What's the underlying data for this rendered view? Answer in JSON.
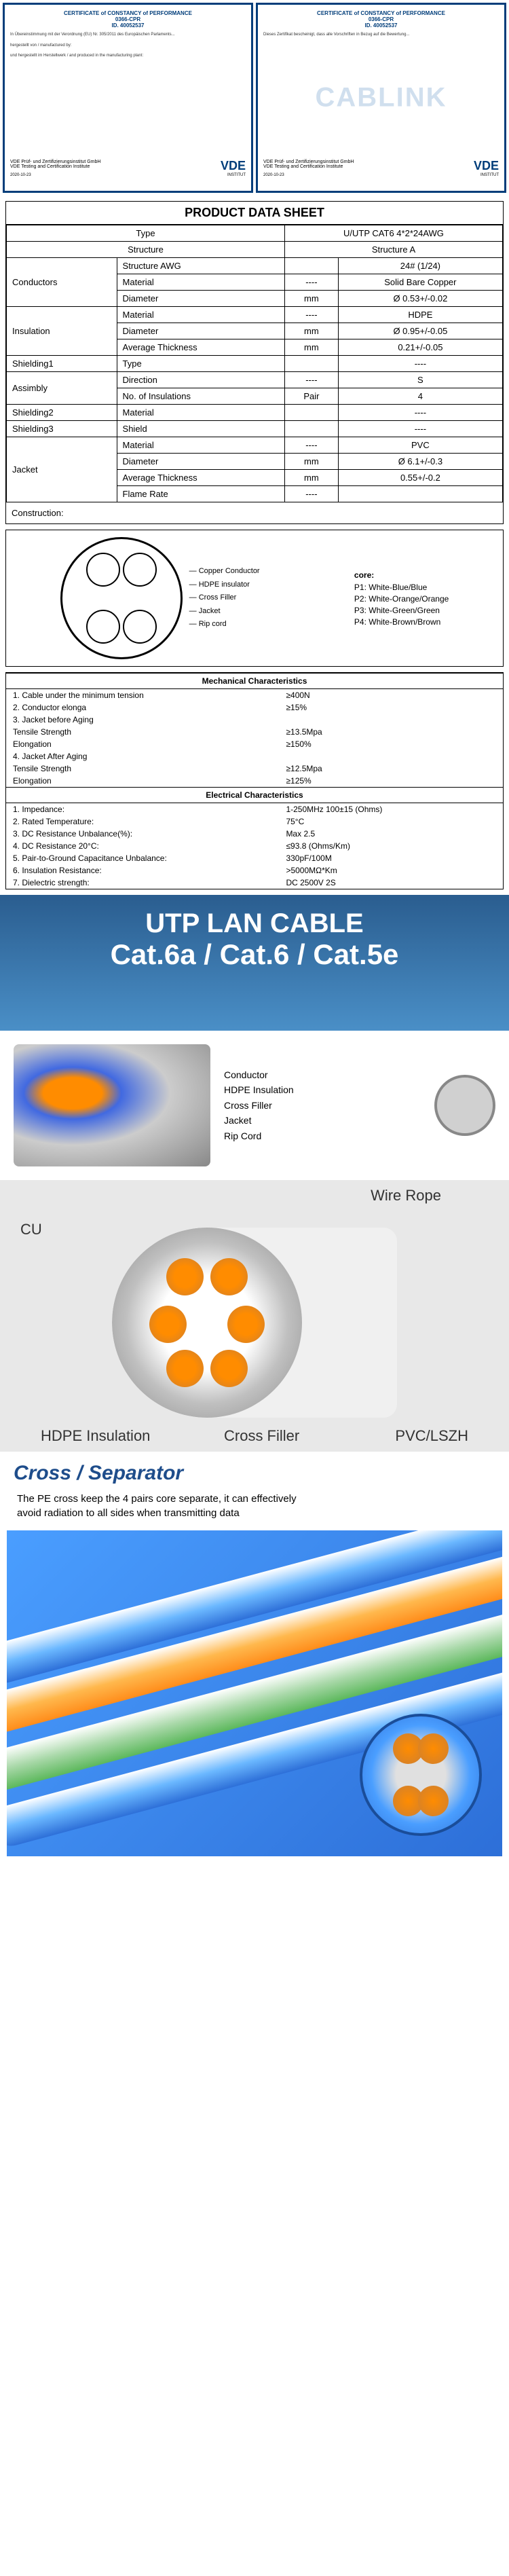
{
  "certs": {
    "title": "CERTIFICATE of CONSTANCY of PERFORMANCE",
    "code": "0366-CPR",
    "id": "ID. 40052537",
    "vde_label": "VDE",
    "vde_sub": "INSTITUT",
    "date": "2020-10-23"
  },
  "watermark": "CABLINK",
  "pds": {
    "title": "PRODUCT DATA SHEET",
    "headers": {
      "type": "Type",
      "value": "U/UTP CAT6 4*2*24AWG",
      "struct": "Structure",
      "structA": "Structure A"
    },
    "rows": [
      {
        "group": "Conductors",
        "items": [
          {
            "k": "Structure AWG",
            "u": "",
            "v": "24# (1/24)"
          },
          {
            "k": "Material",
            "u": "----",
            "v": "Solid Bare Copper"
          },
          {
            "k": "Diameter",
            "u": "mm",
            "v": "Ø 0.53+/-0.02"
          }
        ]
      },
      {
        "group": "Insulation",
        "items": [
          {
            "k": "Material",
            "u": "----",
            "v": "HDPE"
          },
          {
            "k": "Diameter",
            "u": "mm",
            "v": "Ø 0.95+/-0.05"
          },
          {
            "k": "Average Thickness",
            "u": "mm",
            "v": "0.21+/-0.05"
          }
        ]
      },
      {
        "group": "Shielding1",
        "items": [
          {
            "k": "Type",
            "u": "",
            "v": "----"
          }
        ]
      },
      {
        "group": "Assimbly",
        "items": [
          {
            "k": "Direction",
            "u": "----",
            "v": "S"
          },
          {
            "k": "No. of Insulations",
            "u": "Pair",
            "v": "4"
          }
        ]
      },
      {
        "group": "Shielding2",
        "items": [
          {
            "k": "Material",
            "u": "",
            "v": "----"
          }
        ]
      },
      {
        "group": "Shielding3",
        "items": [
          {
            "k": "Shield",
            "u": "",
            "v": "----"
          }
        ]
      },
      {
        "group": "Jacket",
        "items": [
          {
            "k": "Material",
            "u": "----",
            "v": "PVC"
          },
          {
            "k": "Diameter",
            "u": "mm",
            "v": "Ø 6.1+/-0.3"
          },
          {
            "k": "Average Thickness",
            "u": "mm",
            "v": "0.55+/-0.2"
          },
          {
            "k": "Flame Rate",
            "u": "----",
            "v": ""
          }
        ]
      }
    ],
    "construction_label": "Construction:",
    "diagram_labels": [
      "Copper Conductor",
      "HDPE insulator",
      "Cross Filler",
      "Jacket",
      "Rip cord"
    ],
    "core": {
      "hdr": "core:",
      "items": [
        "P1: White-Blue/Blue",
        "P2: White-Orange/Orange",
        "P3: White-Green/Green",
        "P4: White-Brown/Brown"
      ]
    }
  },
  "mech": {
    "title": "Mechanical Characteristics",
    "rows": [
      {
        "n": "1.",
        "k": "Cable under the minimum tension",
        "v": "≥400N"
      },
      {
        "n": "2.",
        "k": "Conductor elonga",
        "v": "≥15%"
      },
      {
        "n": "3.",
        "k": "Jacket before Aging",
        "v": ""
      },
      {
        "n": "",
        "k": "Tensile Strength",
        "v": "≥13.5Mpa"
      },
      {
        "n": "",
        "k": "Elongation",
        "v": "≥150%"
      },
      {
        "n": "4.",
        "k": "Jacket After Aging",
        "v": ""
      },
      {
        "n": "",
        "k": "Tensile Strength",
        "v": "≥12.5Mpa"
      },
      {
        "n": "",
        "k": "Elongation",
        "v": "≥125%"
      }
    ]
  },
  "elec": {
    "title": "Electrical Characteristics",
    "rows": [
      {
        "n": "1.",
        "k": "Impedance:",
        "v": "1-250MHz 100±15 (Ohms)"
      },
      {
        "n": "2.",
        "k": "Rated Temperature:",
        "v": "75°C"
      },
      {
        "n": "3.",
        "k": "DC Resistance Unbalance(%):",
        "v": "Max 2.5"
      },
      {
        "n": "4.",
        "k": "DC Resistance 20°C:",
        "v": "≤93.8 (Ohms/Km)"
      },
      {
        "n": "5.",
        "k": "Pair-to-Ground Capacitance Unbalance:",
        "v": "330pF/100M"
      },
      {
        "n": "6.",
        "k": "Insulation Resistance:",
        "v": ">5000MΩ*Km"
      },
      {
        "n": "7.",
        "k": "Dielectric strength:",
        "v": "DC 2500V 2S"
      }
    ]
  },
  "lan": {
    "title": "UTP LAN CABLE",
    "sub": "Cat.6a / Cat.6 / Cat.5e",
    "layers": [
      "Conductor",
      "HDPE Insulation",
      "Cross Filler",
      "Jacket",
      "Rip Cord"
    ]
  },
  "labeled": {
    "cu": "CU",
    "rope": "Wire Rope",
    "hdpe": "HDPE Insulation",
    "cross": "Cross Filler",
    "pvc": "PVC/LSZH"
  },
  "sep": {
    "title": "Cross / Separator",
    "desc": "The PE cross keep the 4 pairs core separate, it can effectively avoid radiation to all sides when transmitting data"
  },
  "colors": {
    "vde_blue": "#003d7a",
    "accent_orange": "#ff8c00",
    "cable_blue": "#4a9eff",
    "sep_title": "#1e4d8b"
  }
}
